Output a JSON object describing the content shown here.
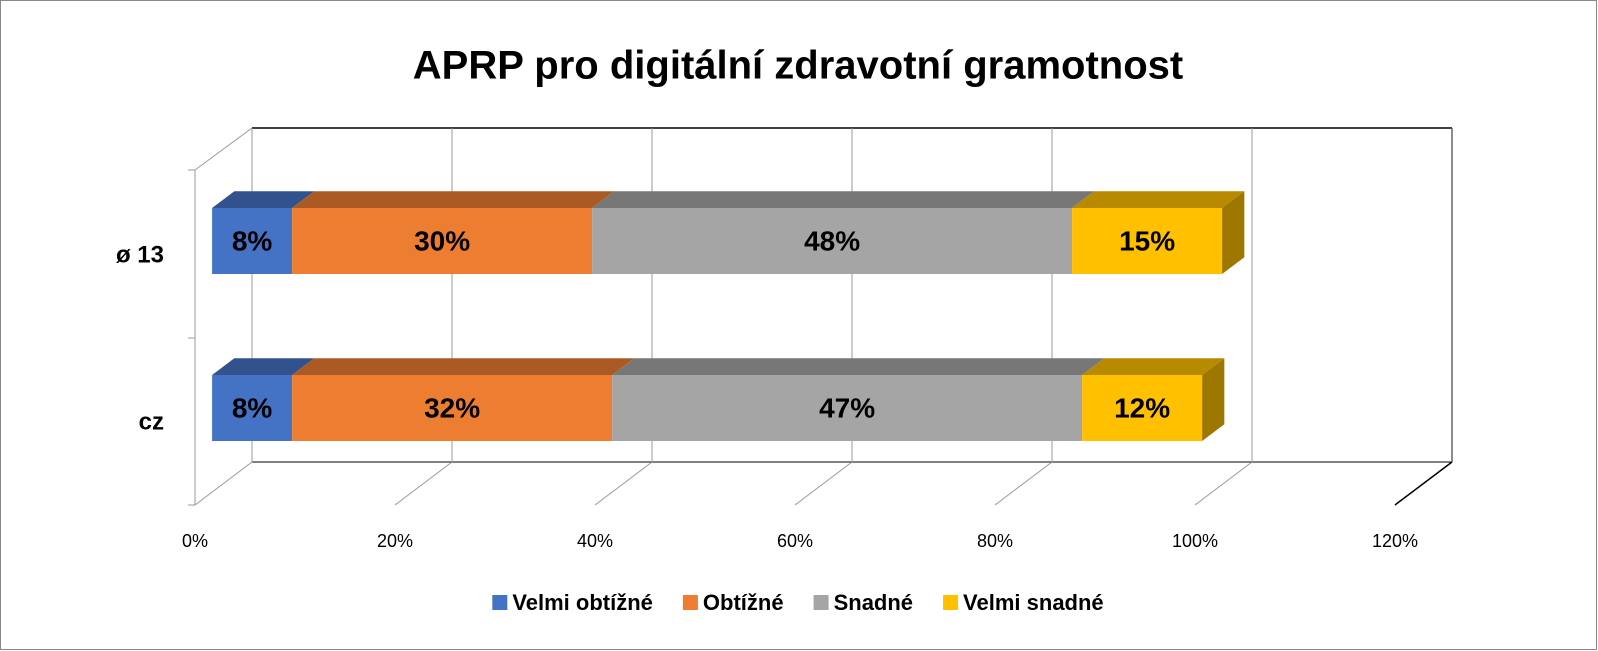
{
  "chart_data": {
    "type": "bar3d_stacked_horizontal",
    "title": "APRP pro digitální zdravotní gramotnost",
    "categories": [
      "cz",
      "ø 13"
    ],
    "series": [
      {
        "name": "Velmi obtížné",
        "color": "#4472c4",
        "values": [
          8,
          8
        ],
        "value_labels": [
          "8%",
          "8%"
        ]
      },
      {
        "name": "Obtížné",
        "color": "#ed7d31",
        "values": [
          32,
          30
        ],
        "value_labels": [
          "32%",
          "30%"
        ]
      },
      {
        "name": "Snadné",
        "color": "#a5a5a5",
        "values": [
          47,
          48
        ],
        "value_labels": [
          "47%",
          "48%"
        ]
      },
      {
        "name": "Velmi snadné",
        "color": "#ffc000",
        "values": [
          12,
          15
        ],
        "value_labels": [
          "12%",
          "15%"
        ]
      }
    ],
    "xlim": [
      0,
      120
    ],
    "xticks": [
      {
        "value": 0,
        "label": "0%"
      },
      {
        "value": 20,
        "label": "20%"
      },
      {
        "value": 40,
        "label": "40%"
      },
      {
        "value": 60,
        "label": "60%"
      },
      {
        "value": 80,
        "label": "80%"
      },
      {
        "value": 100,
        "label": "100%"
      },
      {
        "value": 120,
        "label": "120%"
      }
    ],
    "grid": true,
    "legend": "bottom"
  }
}
